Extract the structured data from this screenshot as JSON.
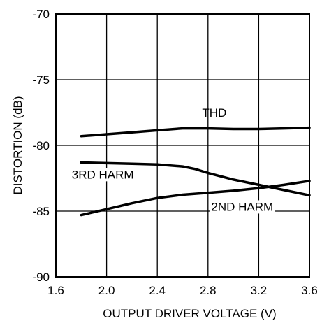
{
  "chart_data": {
    "type": "line",
    "xlabel": "OUTPUT DRIVER VOLTAGE (V)",
    "ylabel": "DISTORTION  (dB)",
    "xlim": [
      1.6,
      3.6
    ],
    "ylim": [
      -90,
      -70
    ],
    "xticks": [
      "1.6",
      "2.0",
      "2.4",
      "2.8",
      "3.2",
      "3.6"
    ],
    "yticks": [
      "-70",
      "-75",
      "-80",
      "-85",
      "-90"
    ],
    "grid": true,
    "series": [
      {
        "name": "THD",
        "x": [
          1.8,
          2.0,
          2.2,
          2.4,
          2.6,
          2.8,
          3.0,
          3.2,
          3.4,
          3.6
        ],
        "y": [
          -79.3,
          -79.15,
          -79.0,
          -78.85,
          -78.7,
          -78.7,
          -78.75,
          -78.75,
          -78.7,
          -78.65
        ]
      },
      {
        "name": "3RD HARM",
        "x": [
          1.8,
          2.0,
          2.2,
          2.4,
          2.6,
          2.7,
          2.8,
          3.0,
          3.2,
          3.4,
          3.6
        ],
        "y": [
          -81.3,
          -81.35,
          -81.4,
          -81.45,
          -81.6,
          -81.8,
          -82.1,
          -82.6,
          -83.0,
          -83.4,
          -83.8
        ]
      },
      {
        "name": "2ND HARM",
        "x": [
          1.8,
          2.0,
          2.2,
          2.4,
          2.6,
          2.8,
          3.0,
          3.2,
          3.4,
          3.6
        ],
        "y": [
          -85.3,
          -84.85,
          -84.4,
          -84.0,
          -83.75,
          -83.6,
          -83.45,
          -83.25,
          -83.0,
          -82.7
        ]
      }
    ]
  }
}
